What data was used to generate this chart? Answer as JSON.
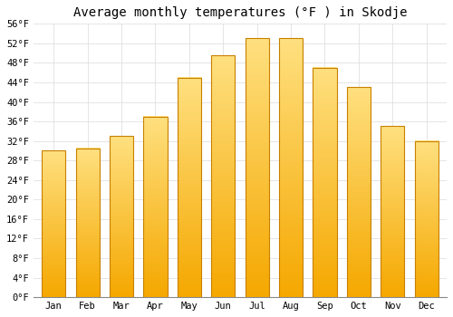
{
  "title": "Average monthly temperatures (°F ) in Skodje",
  "months": [
    "Jan",
    "Feb",
    "Mar",
    "Apr",
    "May",
    "Jun",
    "Jul",
    "Aug",
    "Sep",
    "Oct",
    "Nov",
    "Dec"
  ],
  "values": [
    30,
    30.5,
    33,
    37,
    45,
    49.5,
    53,
    53,
    47,
    43,
    35,
    32
  ],
  "bar_color_bottom": "#F5A800",
  "bar_color_top": "#FFE080",
  "bar_edge_color": "#C88000",
  "ylim": [
    0,
    56
  ],
  "yticks": [
    0,
    4,
    8,
    12,
    16,
    20,
    24,
    28,
    32,
    36,
    40,
    44,
    48,
    52,
    56
  ],
  "ytick_labels": [
    "0°F",
    "4°F",
    "8°F",
    "12°F",
    "16°F",
    "20°F",
    "24°F",
    "28°F",
    "32°F",
    "36°F",
    "40°F",
    "44°F",
    "48°F",
    "52°F",
    "56°F"
  ],
  "background_color": "#FFFFFF",
  "grid_color": "#E0E0E0",
  "title_fontsize": 10,
  "tick_fontsize": 7.5,
  "bar_width": 0.7
}
